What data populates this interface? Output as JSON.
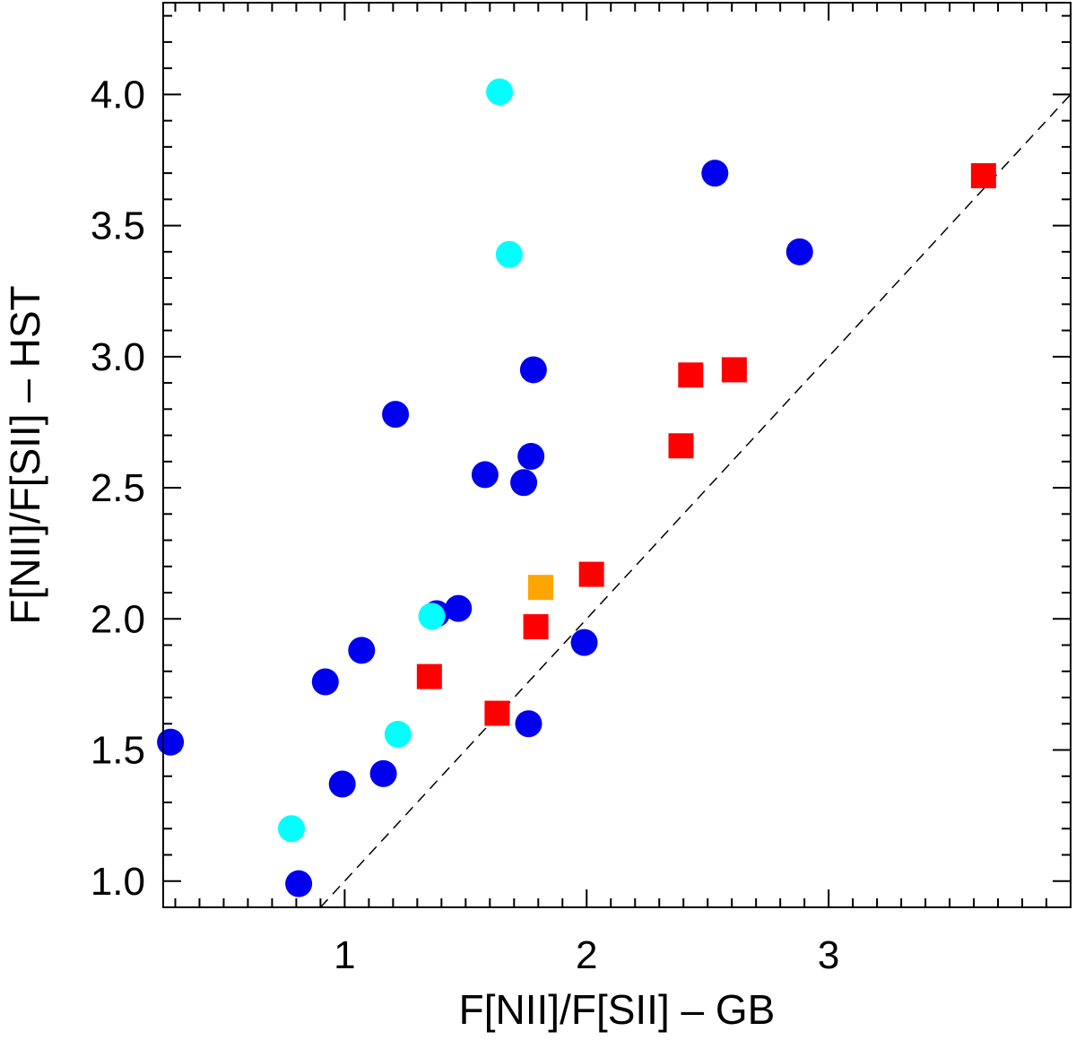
{
  "chart_data": {
    "type": "scatter",
    "xlabel": "F[NII]/F[SII] – GB",
    "ylabel": "F[NII]/F[SII] – HST",
    "xlim": [
      0.25,
      4.0
    ],
    "ylim": [
      0.9,
      4.35
    ],
    "x_ticks": [
      {
        "value": 1,
        "label": "1"
      },
      {
        "value": 2,
        "label": "2"
      },
      {
        "value": 3,
        "label": "3"
      }
    ],
    "x_minor_step": 0.1,
    "y_ticks": [
      {
        "value": 1.0,
        "label": "1.0"
      },
      {
        "value": 1.5,
        "label": "1.5"
      },
      {
        "value": 2.0,
        "label": "2.0"
      },
      {
        "value": 2.5,
        "label": "2.5"
      },
      {
        "value": 3.0,
        "label": "3.0"
      },
      {
        "value": 3.5,
        "label": "3.5"
      },
      {
        "value": 4.0,
        "label": "4.0"
      }
    ],
    "y_minor_step": 0.1,
    "grid": false,
    "reference_line": {
      "style": "dashed",
      "color": "#000000",
      "x": [
        0.9,
        4.0
      ],
      "y": [
        0.9,
        4.0
      ]
    },
    "series": [
      {
        "marker": "circle",
        "color": "#0000ee",
        "points": [
          {
            "x": 0.28,
            "y": 1.53
          },
          {
            "x": 0.81,
            "y": 0.99
          },
          {
            "x": 0.92,
            "y": 1.76
          },
          {
            "x": 0.99,
            "y": 1.37
          },
          {
            "x": 1.07,
            "y": 1.88
          },
          {
            "x": 1.16,
            "y": 1.41
          },
          {
            "x": 1.21,
            "y": 2.78
          },
          {
            "x": 1.38,
            "y": 2.02
          },
          {
            "x": 1.47,
            "y": 2.04
          },
          {
            "x": 1.58,
            "y": 2.55
          },
          {
            "x": 1.74,
            "y": 2.52
          },
          {
            "x": 1.77,
            "y": 2.62
          },
          {
            "x": 1.78,
            "y": 2.95
          },
          {
            "x": 1.76,
            "y": 1.6
          },
          {
            "x": 1.99,
            "y": 1.91
          },
          {
            "x": 2.53,
            "y": 3.7
          },
          {
            "x": 2.88,
            "y": 3.4
          }
        ]
      },
      {
        "marker": "circle",
        "color": "#00ffff",
        "points": [
          {
            "x": 0.78,
            "y": 1.2
          },
          {
            "x": 1.22,
            "y": 1.56
          },
          {
            "x": 1.36,
            "y": 2.01
          },
          {
            "x": 1.64,
            "y": 4.01
          },
          {
            "x": 1.68,
            "y": 3.39
          }
        ]
      },
      {
        "marker": "square",
        "color": "#ff0000",
        "points": [
          {
            "x": 1.35,
            "y": 1.78
          },
          {
            "x": 1.63,
            "y": 1.64
          },
          {
            "x": 1.79,
            "y": 1.97
          },
          {
            "x": 2.02,
            "y": 2.17
          },
          {
            "x": 2.39,
            "y": 2.66
          },
          {
            "x": 2.43,
            "y": 2.93
          },
          {
            "x": 2.61,
            "y": 2.95
          },
          {
            "x": 3.64,
            "y": 3.69
          }
        ]
      },
      {
        "marker": "square",
        "color": "#ffa500",
        "points": [
          {
            "x": 1.81,
            "y": 2.12
          }
        ]
      }
    ]
  }
}
